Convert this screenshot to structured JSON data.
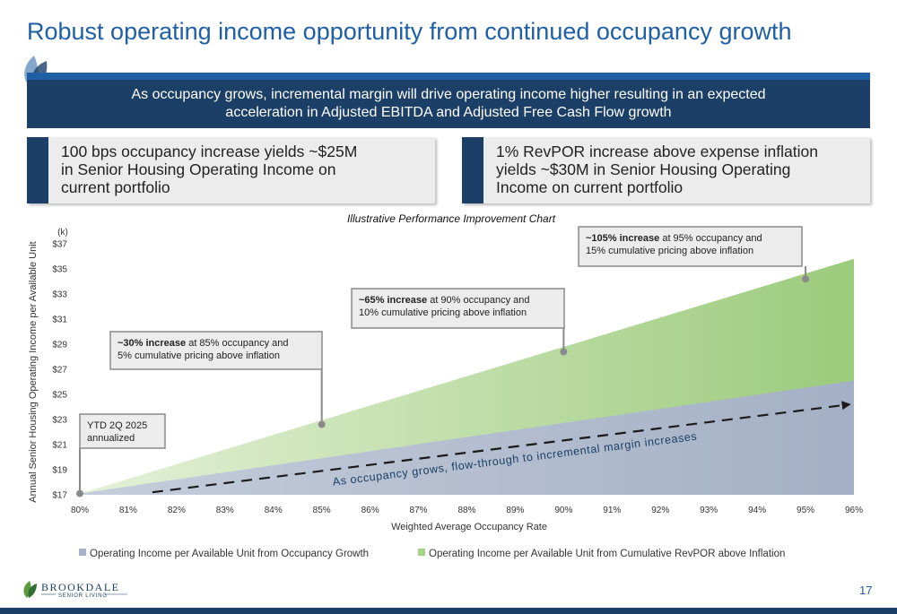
{
  "header": {
    "title": "Robust operating income opportunity from continued occupancy growth",
    "banner_line1": "As occupancy grows, incremental margin will drive operating income higher resulting in an expected",
    "banner_line2": "acceleration in Adjusted EBITDA and Adjusted Free Cash Flow growth"
  },
  "cards": {
    "left": [
      "100 bps occupancy increase yields ~$25M",
      "in Senior Housing Operating Income on",
      "current portfolio"
    ],
    "right": [
      "1% RevPOR increase above expense inflation",
      "yields ~$30M in Senior Housing Operating",
      "Income on current portfolio"
    ]
  },
  "colors": {
    "brand_blue": "#1f5fa6",
    "navy": "#1b3f66",
    "occupancy_area": "#a8b4c8",
    "revpor_area": "#a7d28a",
    "callout_fill": "#ececec",
    "callout_border": "#8a8a8a"
  },
  "chart_data": {
    "type": "area",
    "title": "Illustrative Performance Improvement Chart",
    "unit_label": "(k)",
    "xlabel": "Weighted Average Occupancy Rate",
    "ylabel": "Annual Senior Housing Operating Income per Available Unit",
    "x": [
      80,
      81,
      82,
      83,
      84,
      85,
      86,
      87,
      88,
      89,
      90,
      91,
      92,
      93,
      94,
      95,
      96
    ],
    "x_tick_labels": [
      "80%",
      "81%",
      "82%",
      "83%",
      "84%",
      "85%",
      "86%",
      "87%",
      "88%",
      "89%",
      "90%",
      "91%",
      "92%",
      "93%",
      "94%",
      "95%",
      "96%"
    ],
    "y_ticks": [
      17,
      19,
      21,
      23,
      25,
      27,
      29,
      31,
      33,
      35,
      37
    ],
    "y_tick_labels": [
      "$17",
      "$19",
      "$21",
      "$23",
      "$25",
      "$27",
      "$29",
      "$31",
      "$33",
      "$35",
      "$37"
    ],
    "ylim": [
      17,
      37
    ],
    "xlim": [
      80,
      96
    ],
    "series": [
      {
        "name": "Operating Income per Available Unit from Occupancy Growth",
        "color": "#a8b4c8",
        "x": [
          80,
          96
        ],
        "y": [
          17.1,
          26.1
        ]
      },
      {
        "name": "Operating Income per Available Unit from Cumulative RevPOR above Inflation",
        "color": "#a7d28a",
        "x": [
          80,
          96
        ],
        "y": [
          17.1,
          35.8
        ]
      }
    ],
    "trend_arrow": {
      "x": [
        81.5,
        95.9
      ],
      "y": [
        17.2,
        24.2
      ],
      "label": "As occupancy grows, flow-through to incremental margin increases"
    },
    "markers": [
      {
        "x": 80,
        "y": 17.1,
        "text_bold": "",
        "text": [
          "YTD 2Q 2025",
          "annualized"
        ]
      },
      {
        "x": 85,
        "y": 22.6,
        "text_bold": "~30% increase",
        "text": [
          " at 85% occupancy and",
          "5% cumulative pricing above inflation"
        ]
      },
      {
        "x": 90,
        "y": 28.4,
        "text_bold": "~65% increase",
        "text": [
          " at 90% occupancy and",
          "10% cumulative pricing above inflation"
        ]
      },
      {
        "x": 95,
        "y": 34.2,
        "text_bold": "~105% increase",
        "text": [
          " at 95% occupancy and",
          "15% cumulative pricing above inflation"
        ]
      }
    ],
    "legend_position": "bottom"
  },
  "footer": {
    "logo_word": "BROOKDALE",
    "logo_sub": "SENIOR LIVING",
    "page_number": "17"
  }
}
